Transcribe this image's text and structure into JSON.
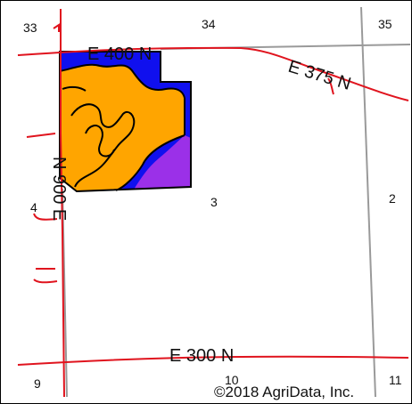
{
  "map": {
    "sections": [
      {
        "id": "33",
        "label": "33"
      },
      {
        "id": "34",
        "label": "34"
      },
      {
        "id": "35",
        "label": "35"
      },
      {
        "id": "4",
        "label": "4"
      },
      {
        "id": "3",
        "label": "3"
      },
      {
        "id": "2",
        "label": "2"
      },
      {
        "id": "9",
        "label": "9"
      },
      {
        "id": "10",
        "label": "10"
      },
      {
        "id": "11",
        "label": "11"
      }
    ],
    "roads": {
      "e400n": "E 400 N",
      "e375n": "E 375 N",
      "n900e": "N 900 E",
      "e300n": "E 300 N"
    },
    "copyright": "©2018 AgriData, Inc.",
    "colors": {
      "road": "#e0141e",
      "section_line": "#9a9a9a",
      "soil_orange": "#ffa500",
      "soil_blue": "#1010ee",
      "soil_purple": "#9b30e8",
      "outline": "#000000",
      "frame": "#000000"
    }
  }
}
